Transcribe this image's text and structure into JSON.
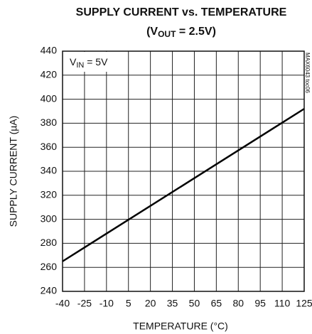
{
  "chart_data": {
    "type": "line",
    "title": "SUPPLY CURRENT vs. TEMPERATURE",
    "subtitle": [
      "(V",
      "OUT",
      " = 2.5V)"
    ],
    "annotation": [
      "V",
      "IN",
      " = 5V"
    ],
    "side_label": "MAX6043 toc06",
    "xlabel": "TEMPERATURE (°C)",
    "ylabel": "SUPPLY CURRENT (µA)",
    "x": [
      -40,
      125
    ],
    "series": [
      {
        "color": "#000000",
        "values": [
          265,
          392
        ]
      }
    ],
    "xlim": [
      -40,
      125
    ],
    "xticks": [
      -40,
      -25,
      -10,
      5,
      20,
      35,
      50,
      65,
      80,
      95,
      110,
      125
    ],
    "ylim": [
      240,
      440
    ],
    "yticks": [
      240,
      260,
      280,
      300,
      320,
      340,
      360,
      380,
      400,
      420,
      440
    ],
    "grid": true
  }
}
